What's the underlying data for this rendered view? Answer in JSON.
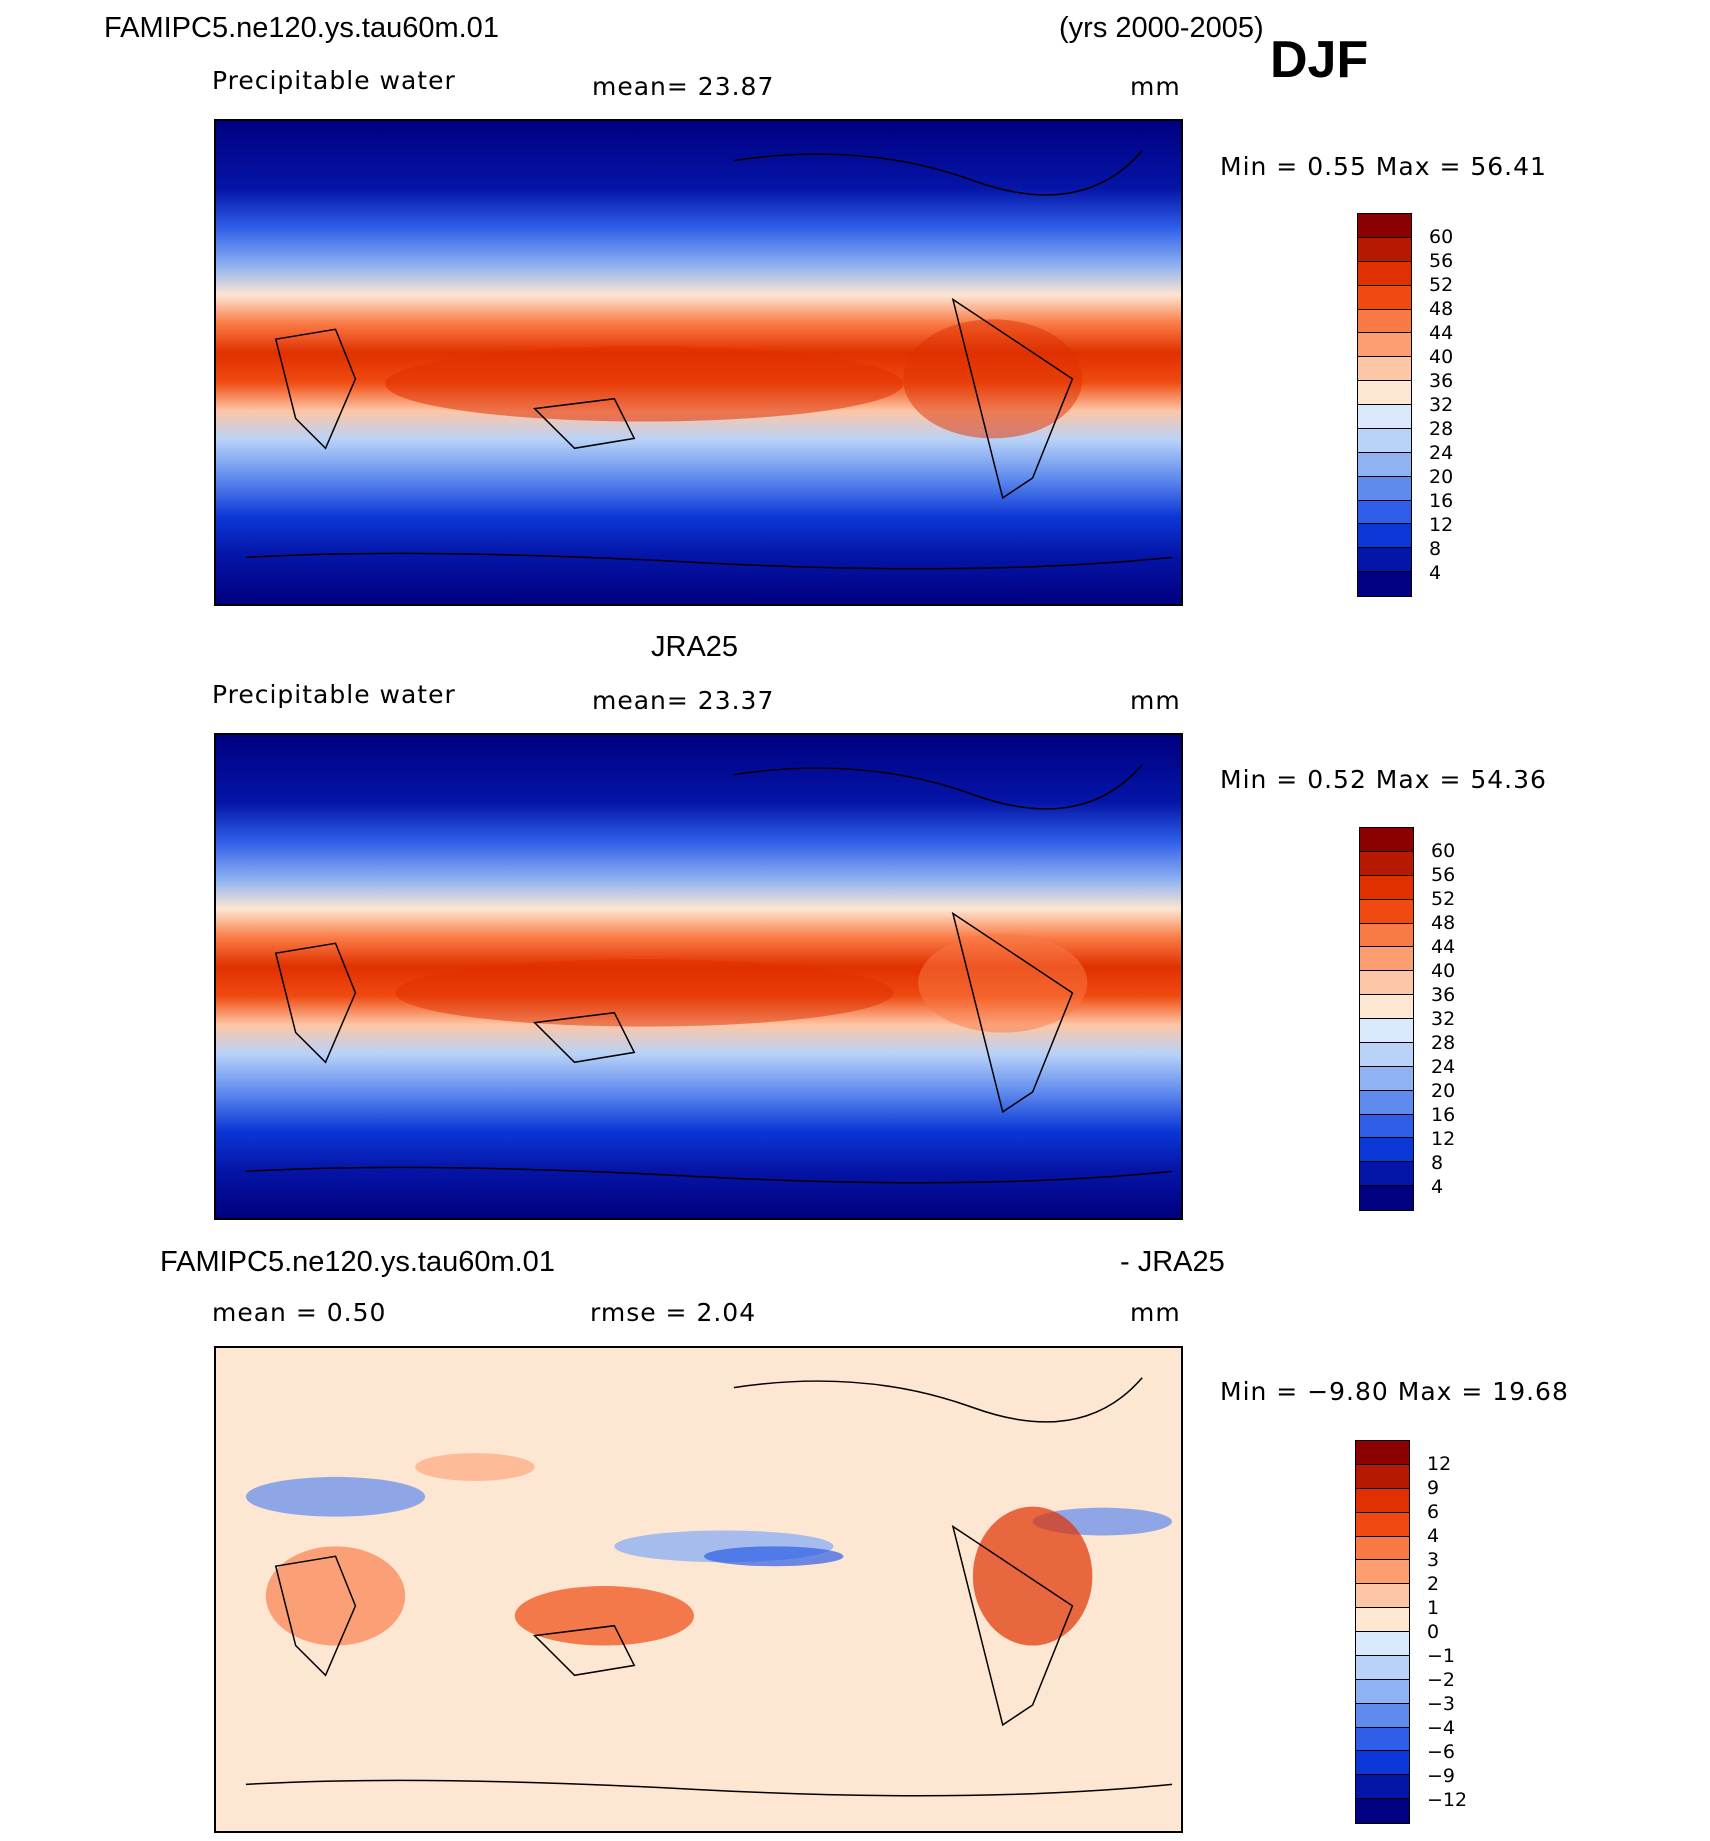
{
  "header": {
    "case_name": "FAMIPC5.ne120.ys.tau60m.01",
    "years": "(yrs 2000-2005)",
    "season": "DJF"
  },
  "panels": [
    {
      "id": "model",
      "title": "",
      "variable": "Precipitable water",
      "stat_text": "mean=   23.87",
      "units": "mm",
      "min_max": "Min =    0.55  Max =   56.41",
      "legend_labels": [
        "60",
        "56",
        "52",
        "48",
        "44",
        "40",
        "36",
        "32",
        "28",
        "24",
        "20",
        "16",
        "12",
        "8",
        "4"
      ]
    },
    {
      "id": "obs",
      "title": "JRA25",
      "variable": "Precipitable water",
      "stat_text": "mean=   23.37",
      "units": "mm",
      "min_max": "Min =    0.52  Max =   54.36",
      "legend_labels": [
        "60",
        "56",
        "52",
        "48",
        "44",
        "40",
        "36",
        "32",
        "28",
        "24",
        "20",
        "16",
        "12",
        "8",
        "4"
      ]
    },
    {
      "id": "diff",
      "title_left": "FAMIPC5.ne120.ys.tau60m.01",
      "title_right": "- JRA25",
      "stat_left": "mean =    0.50",
      "stat_mid": "rmse =    2.04",
      "units": "mm",
      "min_max": "Min =  −9.80  Max =   19.68",
      "legend_labels": [
        "12",
        "9",
        "6",
        "4",
        "3",
        "2",
        "1",
        "0",
        "−1",
        "−2",
        "−3",
        "−4",
        "−6",
        "−9",
        "−12"
      ]
    }
  ],
  "colors": {
    "abs_scale": [
      "#8b0000",
      "#b51a00",
      "#e03000",
      "#f04a10",
      "#fa7a45",
      "#fd9e70",
      "#fdc6a6",
      "#fde6d2",
      "#d9e8fb",
      "#b8d2f8",
      "#8fb2f2",
      "#5f8aee",
      "#2e5ee8",
      "#0b37d6",
      "#0515a8",
      "#000080"
    ],
    "diff_scale": [
      "#8b0000",
      "#b51a00",
      "#e03000",
      "#f04a10",
      "#fa7a45",
      "#fd9e70",
      "#fdc6a6",
      "#fde6d2",
      "#d9e8fb",
      "#b8d2f8",
      "#8fb2f2",
      "#5f8aee",
      "#2e5ee8",
      "#0b37d6",
      "#0515a8",
      "#000080"
    ]
  }
}
